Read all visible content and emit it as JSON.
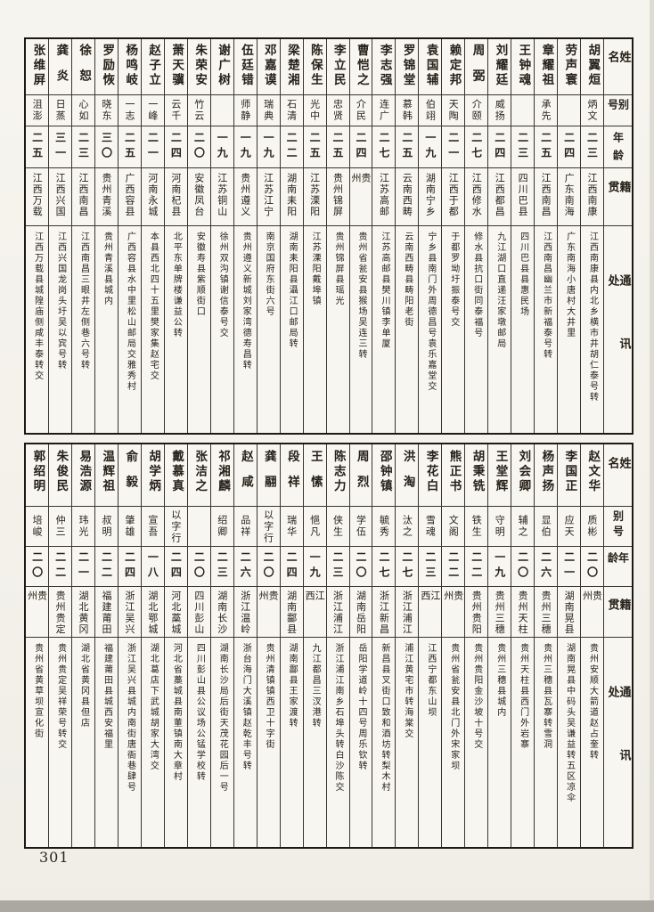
{
  "page": {
    "number": "301"
  },
  "headers": {
    "name": "姓名",
    "alias": "别号",
    "age": "年龄",
    "native_place": "籍贯",
    "address": "通讯处"
  },
  "bands": [
    {
      "persons": [
        {
          "name": "胡翼烜",
          "alias": "炳文",
          "age": "二三",
          "native_place": "江西南康",
          "address": "江西南康县内北乡横市井胡仁泰号转"
        },
        {
          "name": "劳声寰",
          "alias": "",
          "age": "二四",
          "native_place": "广东南海",
          "address": "广东南海小唐村大井里"
        },
        {
          "name": "章耀祖",
          "alias": "承先",
          "age": "二五",
          "native_place": "江西南昌",
          "address": "江西南昌幽兰市新福泰号转"
        },
        {
          "name": "王钟魂",
          "alias": "",
          "age": "二三",
          "native_place": "四川巴县",
          "address": "四川巴县县惠民场"
        },
        {
          "name": "刘耀廷",
          "alias": "威扬",
          "age": "二四",
          "native_place": "江西都昌",
          "address": "九江湖口直递汪家墩邮局"
        },
        {
          "name": "周弼",
          "alias": "介颐",
          "age": "二七",
          "native_place": "江西修水",
          "address": "修水县抗口街同泰福号"
        },
        {
          "name": "赖定邦",
          "alias": "天陶",
          "age": "二一",
          "native_place": "江西于都",
          "address": "于都罗坳圩振泰号交"
        },
        {
          "name": "袁国辅",
          "alias": "伯翊",
          "age": "一九",
          "native_place": "湖南宁乡",
          "address": "宁乡县南门外周德昌号袁乐嘉堂交"
        },
        {
          "name": "罗锦堂",
          "alias": "慕韩",
          "age": "二五",
          "native_place": "云南西畴",
          "address": "云南西畴县畴阳老街"
        },
        {
          "name": "李志强",
          "alias": "连广",
          "age": "二七",
          "native_place": "江苏高邮",
          "address": "江苏高邮县樊川镇李单厦"
        },
        {
          "name": "曹恺之",
          "alias": "介民",
          "age": "二四",
          "native_place": "贵州",
          "address": "贵州省瓮安县猴场吴连三转"
        },
        {
          "name": "李立民",
          "alias": "忠贤",
          "age": "二五",
          "native_place": "贵州锦屏",
          "address": "贵州锦屏县瑶光"
        },
        {
          "name": "陈保生",
          "alias": "光中",
          "age": "二五",
          "native_place": "江苏溧阳",
          "address": "江苏溧阳戴埠镇"
        },
        {
          "name": "梁楚湘",
          "alias": "石清",
          "age": "二二",
          "native_place": "湖南耒阳",
          "address": "湖南耒阳县灄江口邮局转"
        },
        {
          "name": "邓嘉谟",
          "alias": "瑞典",
          "age": "一九",
          "native_place": "江苏江宁",
          "address": "南京国府东街六号"
        },
        {
          "name": "伍廷错",
          "alias": "师静",
          "age": "一九",
          "native_place": "贵州遵义",
          "address": "贵州遵义新城刘家湾德寿昌转"
        },
        {
          "name": "谢广树",
          "alias": "",
          "age": "一九",
          "native_place": "江苏铜山",
          "address": "徐州双沟镇谢信泰号交"
        },
        {
          "name": "朱荣安",
          "alias": "竹云",
          "age": "二〇",
          "native_place": "安徽凤台",
          "address": "安徽寿县紫顺街口"
        },
        {
          "name": "萧天骥",
          "alias": "云千",
          "age": "二四",
          "native_place": "河南杞县",
          "address": "北平东单牌楼谦益公转"
        },
        {
          "name": "赵子立",
          "alias": "一峰",
          "age": "二一",
          "native_place": "河南永城",
          "address": "本县西北四十五里樊家集赵宅交"
        },
        {
          "name": "杨鸣岐",
          "alias": "一志",
          "age": "二五",
          "native_place": "广西容县",
          "address": "广西容县水中里松山邮局交雅秀村"
        },
        {
          "name": "罗励恢",
          "alias": "晓东",
          "age": "三〇",
          "native_place": "贵州青溪",
          "address": "贵州青溪县城内"
        },
        {
          "name": "徐恕",
          "alias": "心如",
          "age": "二三",
          "native_place": "江西南昌",
          "address": "江西南昌三眼井左侧巷六号转"
        },
        {
          "name": "龚炎",
          "alias": "日蒸",
          "age": "三一",
          "native_place": "江西兴国",
          "address": "江西兴国龙岗头圩吴以宾号转"
        },
        {
          "name": "张维屏",
          "alias": "沮澎",
          "age": "二五",
          "native_place": "江西万载",
          "address": "江西万载县城隍庙侧咸丰泰转交"
        }
      ]
    },
    {
      "persons": [
        {
          "name": "赵文华",
          "alias": "质彬",
          "age": "二〇",
          "native_place": "贵州",
          "address": "贵州安顺大箭道赵占奎转"
        },
        {
          "name": "李国正",
          "alias": "应天",
          "age": "二一",
          "native_place": "湖南晃县",
          "address": "湖南晃县中码头吴谦益转五区凉伞"
        },
        {
          "name": "杨声扬",
          "alias": "显伯",
          "age": "二六",
          "native_place": "贵州三穗",
          "address": "贵州三穗县瓦寨转雪洞"
        },
        {
          "name": "刘会卿",
          "alias": "辅之",
          "age": "二〇",
          "native_place": "贵州天柱",
          "address": "贵州天柱县西门外岩寨"
        },
        {
          "name": "王堂辉",
          "alias": "守明",
          "age": "一九",
          "native_place": "贵州三穗",
          "address": "贵州三穗县城内"
        },
        {
          "name": "胡秉铣",
          "alias": "铁生",
          "age": "二二",
          "native_place": "贵州贵阳",
          "address": "贵州贵阳金沙坡十号交"
        },
        {
          "name": "熊正书",
          "alias": "文阁",
          "age": "二二",
          "native_place": "贵州",
          "address": "贵州省瓮安县北门外宋家坝"
        },
        {
          "name": "李花白",
          "alias": "雪魂",
          "age": "二三",
          "native_place": "江西",
          "address": "江西宁都东山坝"
        },
        {
          "name": "洪淘",
          "alias": "汰之",
          "age": "二七",
          "native_place": "浙江浦江",
          "address": "浦江黄宅市转海棠交"
        },
        {
          "name": "邵钟镇",
          "alias": "毓秀",
          "age": "二七",
          "native_place": "浙江新昌",
          "address": "新昌县叉街口致和酒坊转梨木村"
        },
        {
          "name": "周烈",
          "alias": "学伍",
          "age": "二〇",
          "native_place": "湖南岳阳",
          "address": "岳阳学道岭十四号周乐钦转"
        },
        {
          "name": "陈志力",
          "alias": "侠生",
          "age": "二三",
          "native_place": "浙江浦江",
          "address": "浙江浦江南乡石埠头转白沙陈交"
        },
        {
          "name": "王愫",
          "alias": "悒凡",
          "age": "一九",
          "native_place": "江西",
          "address": "九江都昌三汊港转"
        },
        {
          "name": "段祥",
          "alias": "瑞华",
          "age": "二四",
          "native_place": "湖南酃县",
          "address": "湖南酃县王家渡转"
        },
        {
          "name": "龚翮",
          "alias": "以字行",
          "age": "二〇",
          "native_place": "贵州",
          "address": "贵州清镇镇西卫十字街"
        },
        {
          "name": "赵咸",
          "alias": "品祥",
          "age": "二六",
          "native_place": "浙江温岭",
          "address": "浙台海门大溪镇赵乾丰号转"
        },
        {
          "name": "祁湘麟",
          "alias": "绍卿",
          "age": "二三",
          "native_place": "湖南长沙",
          "address": "湖南长沙局后街天茂花园后一号"
        },
        {
          "name": "张洁之",
          "alias": "",
          "age": "二〇",
          "native_place": "四川彭山",
          "address": "四川彭山县公议场公锰学校转"
        },
        {
          "name": "戴慕真",
          "alias": "以字行",
          "age": "二四",
          "native_place": "河北藁城",
          "address": "河北省藁城县南董镇南大章村"
        },
        {
          "name": "胡学炳",
          "alias": "宣吾",
          "age": "一八",
          "native_place": "湖北鄂城",
          "address": "湖北葛店下武城胡家大湾交"
        },
        {
          "name": "俞毅",
          "alias": "肇雄",
          "age": "二四",
          "native_place": "浙江吴兴",
          "address": "浙江吴兴县城内南街唐衙巷肆号"
        },
        {
          "name": "温辉祖",
          "alias": "叔明",
          "age": "二二",
          "native_place": "福建莆田",
          "address": "福建莆田县城西安福里"
        },
        {
          "name": "易浩源",
          "alias": "玮光",
          "age": "二一",
          "native_place": "湖北黄冈",
          "address": "湖北省黄冈县但店"
        },
        {
          "name": "朱俊民",
          "alias": "仲三",
          "age": "二二",
          "native_place": "贵州贵定",
          "address": "贵州贵定吴祥荣号转交"
        },
        {
          "name": "郭绍明",
          "alias": "培峻",
          "age": "二〇",
          "native_place": "贵州",
          "address": "贵州省黄草坝宣化街"
        }
      ]
    }
  ]
}
